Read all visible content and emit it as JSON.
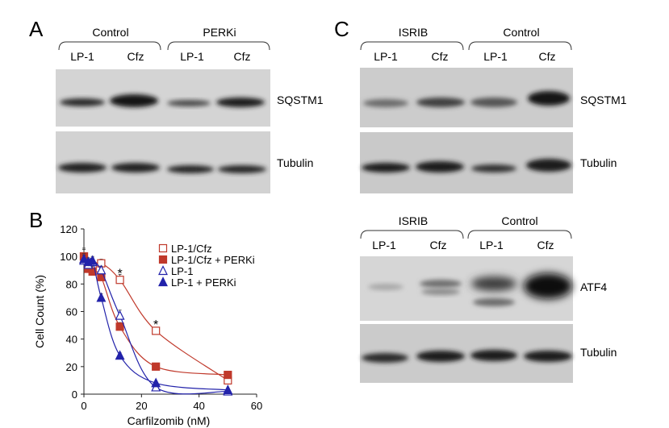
{
  "panels": {
    "A": {
      "letter": "A",
      "groups": [
        "Control",
        "PERKi"
      ],
      "lanes": [
        "LP-1",
        "Cfz",
        "LP-1",
        "Cfz"
      ],
      "blots": [
        "SQSTM1",
        "Tubulin"
      ]
    },
    "B": {
      "letter": "B"
    },
    "C": {
      "letter": "C",
      "top": {
        "groups": [
          "ISRIB",
          "Control"
        ],
        "lanes": [
          "LP-1",
          "Cfz",
          "LP-1",
          "Cfz"
        ],
        "blots": [
          "SQSTM1",
          "Tubulin"
        ]
      },
      "bottom": {
        "groups": [
          "ISRIB",
          "Control"
        ],
        "lanes": [
          "LP-1",
          "Cfz",
          "LP-1",
          "Cfz"
        ],
        "blots": [
          "ATF4",
          "Tubulin"
        ]
      }
    }
  },
  "chart_data": {
    "type": "scatter",
    "title": "",
    "xlabel": "Carfilzomib (nM)",
    "ylabel": "Cell Count (%)",
    "xlim": [
      0,
      60
    ],
    "ylim": [
      0,
      120
    ],
    "xticks": [
      "0",
      "20",
      "40",
      "60"
    ],
    "yticks": [
      "0",
      "20",
      "40",
      "60",
      "80",
      "100",
      "120"
    ],
    "grid": false,
    "legend_position": "top-right",
    "annotations": [
      {
        "text": "*",
        "x": 12.5,
        "y": 88
      },
      {
        "text": "*",
        "x": 25,
        "y": 51
      }
    ],
    "series": [
      {
        "name": "LP-1/Cfz",
        "marker": "square-open",
        "color": "#c0392b",
        "x": [
          0,
          1.5,
          3,
          6,
          12.5,
          25,
          50
        ],
        "y": [
          100,
          95,
          93,
          95,
          83,
          46,
          10
        ],
        "err": [
          6,
          4,
          4,
          3,
          4,
          2,
          2
        ]
      },
      {
        "name": "LP-1/Cfz + PERKi",
        "marker": "square-filled",
        "color": "#c0392b",
        "x": [
          0,
          1.5,
          3,
          6,
          12.5,
          25,
          50
        ],
        "y": [
          100,
          91,
          89,
          85,
          49,
          20,
          14
        ],
        "err": [
          5,
          4,
          4,
          3,
          3,
          1,
          1
        ]
      },
      {
        "name": "LP-1",
        "marker": "triangle-open",
        "color": "#2222aa",
        "x": [
          0,
          1.5,
          3,
          6,
          12.5,
          25,
          50
        ],
        "y": [
          97,
          94,
          96,
          90,
          57,
          5,
          2
        ],
        "err": [
          4,
          3,
          3,
          3,
          4,
          1,
          1
        ]
      },
      {
        "name": "LP-1 + PERKi",
        "marker": "triangle-filled",
        "color": "#2222aa",
        "x": [
          0,
          1.5,
          3,
          6,
          12.5,
          25,
          50
        ],
        "y": [
          98,
          96,
          97,
          70,
          28,
          8,
          3
        ],
        "err": [
          4,
          3,
          3,
          3,
          2,
          1,
          1
        ]
      }
    ]
  }
}
